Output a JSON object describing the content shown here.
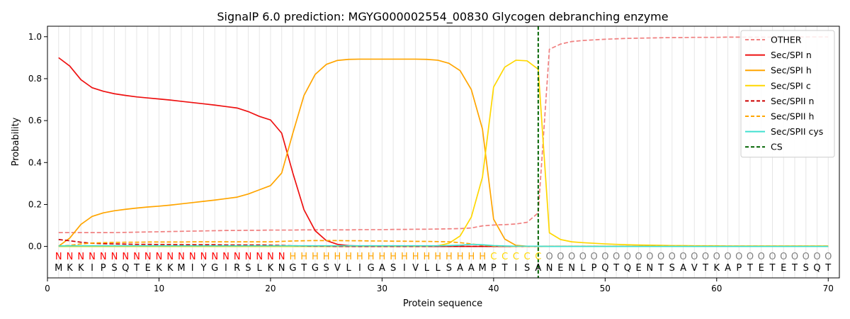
{
  "chart_data": {
    "type": "line",
    "title": "SignalP 6.0 prediction: MGYG000002554_00830 Glycogen debranching enzyme",
    "xlabel": "Protein sequence",
    "ylabel": "Probability",
    "xlim": [
      0,
      71
    ],
    "ylim": [
      -0.15,
      1.05
    ],
    "x_ticks": [
      0,
      10,
      20,
      30,
      40,
      50,
      60,
      70
    ],
    "y_ticks": [
      0.0,
      0.2,
      0.4,
      0.6,
      0.8,
      1.0
    ],
    "x_tick_labels": [
      "0",
      "10",
      "20",
      "30",
      "40",
      "50",
      "60",
      "70"
    ],
    "y_tick_labels": [
      "0.0",
      "0.2",
      "0.4",
      "0.6",
      "0.8",
      "1.0"
    ],
    "grid": "vertical lines at each residue",
    "legend_position": "top-right",
    "cleavage_site": 44,
    "sequence": [
      "M",
      "K",
      "K",
      "I",
      "P",
      "S",
      "Q",
      "T",
      "E",
      "K",
      "K",
      "M",
      "I",
      "Y",
      "G",
      "I",
      "R",
      "S",
      "L",
      "K",
      "N",
      "G",
      "T",
      "G",
      "S",
      "V",
      "L",
      "I",
      "G",
      "A",
      "S",
      "I",
      "V",
      "L",
      "L",
      "S",
      "A",
      "A",
      "M",
      "P",
      "T",
      "I",
      "S",
      "A",
      "N",
      "E",
      "N",
      "L",
      "P",
      "Q",
      "T",
      "Q",
      "E",
      "N",
      "T",
      "S",
      "A",
      "V",
      "T",
      "K",
      "A",
      "P",
      "T",
      "E",
      "T",
      "E",
      "T",
      "S",
      "Q",
      "T"
    ],
    "region_labels": [
      "N",
      "N",
      "N",
      "N",
      "N",
      "N",
      "N",
      "N",
      "N",
      "N",
      "N",
      "N",
      "N",
      "N",
      "N",
      "N",
      "N",
      "N",
      "N",
      "N",
      "N",
      "H",
      "H",
      "H",
      "H",
      "H",
      "H",
      "H",
      "H",
      "H",
      "H",
      "H",
      "H",
      "H",
      "H",
      "H",
      "H",
      "H",
      "H",
      "C",
      "C",
      "C",
      "C",
      "C",
      "O",
      "O",
      "O",
      "O",
      "O",
      "O",
      "O",
      "O",
      "O",
      "O",
      "O",
      "O",
      "O",
      "O",
      "O",
      "O",
      "O",
      "O",
      "O",
      "O",
      "O",
      "O",
      "O",
      "O",
      "O",
      "O"
    ],
    "region_colors": {
      "N": "#ff0000",
      "H": "#ffa500",
      "C": "#ffd700",
      "O": "#808080"
    },
    "series": [
      {
        "name": "OTHER",
        "color": "#f08080",
        "dash": "dashed",
        "values": [
          0.066,
          0.066,
          0.066,
          0.066,
          0.066,
          0.066,
          0.067,
          0.068,
          0.069,
          0.07,
          0.071,
          0.072,
          0.073,
          0.074,
          0.075,
          0.076,
          0.076,
          0.077,
          0.077,
          0.078,
          0.078,
          0.078,
          0.079,
          0.079,
          0.079,
          0.079,
          0.079,
          0.08,
          0.08,
          0.08,
          0.081,
          0.081,
          0.082,
          0.082,
          0.083,
          0.084,
          0.085,
          0.088,
          0.098,
          0.102,
          0.104,
          0.107,
          0.115,
          0.16,
          0.94,
          0.965,
          0.977,
          0.982,
          0.985,
          0.988,
          0.99,
          0.992,
          0.993,
          0.994,
          0.995,
          0.996,
          0.996,
          0.997,
          0.997,
          0.997,
          0.998,
          0.998,
          0.998,
          0.998,
          0.998,
          0.998,
          0.998,
          0.999,
          0.999,
          0.999
        ]
      },
      {
        "name": "Sec/SPI n",
        "color": "#ee1111",
        "dash": "solid",
        "values": [
          0.9,
          0.86,
          0.795,
          0.757,
          0.74,
          0.728,
          0.72,
          0.713,
          0.708,
          0.703,
          0.698,
          0.692,
          0.686,
          0.68,
          0.674,
          0.667,
          0.66,
          0.643,
          0.62,
          0.603,
          0.54,
          0.35,
          0.175,
          0.075,
          0.028,
          0.01,
          0.004,
          0.002,
          0.001,
          0.001,
          0,
          0,
          0,
          0,
          0,
          0,
          0,
          0,
          0,
          0,
          0,
          0,
          0,
          0,
          0,
          0,
          0,
          0,
          0,
          0,
          0,
          0,
          0,
          0,
          0,
          0,
          0,
          0,
          0,
          0,
          0,
          0,
          0,
          0,
          0,
          0,
          0,
          0,
          0,
          0
        ]
      },
      {
        "name": "Sec/SPI h",
        "color": "#ffa500",
        "dash": "solid",
        "values": [
          0.001,
          0.04,
          0.105,
          0.143,
          0.16,
          0.17,
          0.177,
          0.183,
          0.188,
          0.192,
          0.197,
          0.203,
          0.209,
          0.215,
          0.221,
          0.228,
          0.235,
          0.25,
          0.27,
          0.29,
          0.35,
          0.54,
          0.72,
          0.82,
          0.868,
          0.887,
          0.892,
          0.893,
          0.893,
          0.893,
          0.893,
          0.893,
          0.893,
          0.892,
          0.888,
          0.873,
          0.838,
          0.748,
          0.56,
          0.13,
          0.035,
          0.005,
          0.001,
          0.001,
          0,
          0,
          0,
          0,
          0,
          0,
          0,
          0,
          0,
          0,
          0,
          0,
          0,
          0,
          0,
          0,
          0,
          0,
          0,
          0,
          0,
          0,
          0,
          0,
          0,
          0
        ]
      },
      {
        "name": "Sec/SPI c",
        "color": "#ffd700",
        "dash": "solid",
        "values": [
          0,
          0,
          0,
          0,
          0,
          0,
          0,
          0,
          0,
          0,
          0,
          0,
          0,
          0,
          0,
          0,
          0,
          0,
          0,
          0,
          0,
          0,
          0,
          0,
          0,
          0,
          0,
          0,
          0,
          0,
          0,
          0,
          0,
          0,
          0.003,
          0.015,
          0.05,
          0.14,
          0.33,
          0.76,
          0.855,
          0.888,
          0.885,
          0.845,
          0.065,
          0.033,
          0.022,
          0.018,
          0.015,
          0.012,
          0.01,
          0.008,
          0.007,
          0.006,
          0.005,
          0.004,
          0.004,
          0.003,
          0.003,
          0.003,
          0.002,
          0.002,
          0.002,
          0.002,
          0.002,
          0.002,
          0.002,
          0.002,
          0.002,
          0.002
        ]
      },
      {
        "name": "Sec/SPII n",
        "color": "#cc0000",
        "dash": "dashed",
        "values": [
          0.033,
          0.027,
          0.02,
          0.015,
          0.013,
          0.012,
          0.011,
          0.01,
          0.01,
          0.009,
          0.009,
          0.008,
          0.008,
          0.008,
          0.008,
          0.007,
          0.007,
          0.007,
          0.007,
          0.006,
          0.005,
          0.003,
          0.002,
          0.001,
          0.001,
          0,
          0,
          0,
          0,
          0,
          0,
          0,
          0,
          0,
          0,
          0,
          0,
          0,
          0,
          0,
          0,
          0,
          0,
          0,
          0,
          0,
          0,
          0,
          0,
          0,
          0,
          0,
          0,
          0,
          0,
          0,
          0,
          0,
          0,
          0,
          0,
          0,
          0,
          0,
          0,
          0,
          0,
          0,
          0,
          0
        ]
      },
      {
        "name": "Sec/SPII h",
        "color": "#ffa500",
        "dash": "dashed",
        "values": [
          0.001,
          0.005,
          0.012,
          0.016,
          0.018,
          0.019,
          0.02,
          0.02,
          0.021,
          0.021,
          0.021,
          0.021,
          0.022,
          0.022,
          0.022,
          0.022,
          0.022,
          0.022,
          0.022,
          0.022,
          0.024,
          0.026,
          0.027,
          0.028,
          0.028,
          0.028,
          0.027,
          0.027,
          0.026,
          0.026,
          0.025,
          0.025,
          0.024,
          0.024,
          0.023,
          0.022,
          0.018,
          0.012,
          0.006,
          0.002,
          0.001,
          0,
          0,
          0,
          0,
          0,
          0,
          0,
          0,
          0,
          0,
          0,
          0,
          0,
          0,
          0,
          0,
          0,
          0,
          0,
          0,
          0,
          0,
          0,
          0,
          0,
          0,
          0,
          0,
          0
        ]
      },
      {
        "name": "Sec/SPII cys",
        "color": "#40e0d0",
        "dash": "solid",
        "values": [
          0.002,
          0.003,
          0.003,
          0.003,
          0.003,
          0.003,
          0.003,
          0.003,
          0.003,
          0.003,
          0.003,
          0.003,
          0.003,
          0.003,
          0.003,
          0.003,
          0.003,
          0.003,
          0.003,
          0.003,
          0.003,
          0.003,
          0.003,
          0.003,
          0.003,
          0.003,
          0.003,
          0.003,
          0.003,
          0.003,
          0.003,
          0.003,
          0.003,
          0.003,
          0.003,
          0.004,
          0.006,
          0.01,
          0.008,
          0.004,
          0.002,
          0.001,
          0.001,
          0.001,
          0,
          0,
          0,
          0,
          0,
          0,
          0,
          0,
          0,
          0,
          0,
          0,
          0,
          0,
          0,
          0,
          0,
          0,
          0,
          0,
          0,
          0,
          0,
          0,
          0,
          0
        ]
      },
      {
        "name": "CS",
        "color": "#006400",
        "dash": "dashed",
        "kind": "vline",
        "x": 44
      }
    ]
  }
}
